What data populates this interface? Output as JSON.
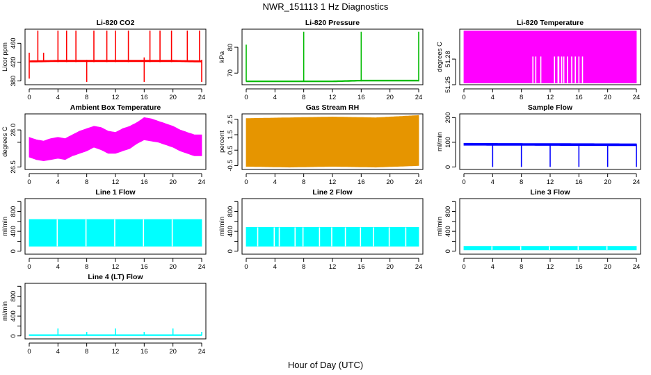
{
  "page": {
    "title": "NWR_151113 1 Hz Diagnostics",
    "xlabel": "Hour of Day (UTC)"
  },
  "chart_data": [
    {
      "id": "co2",
      "type": "line",
      "title": "Li-820 CO2",
      "ylabel": "Licor ppm",
      "color": "#ff0000",
      "xlim": [
        0,
        24
      ],
      "xticks": [
        0,
        4,
        8,
        12,
        16,
        20,
        24
      ],
      "ylim": [
        372,
        490
      ],
      "yticks": [
        380,
        420,
        460
      ],
      "band": {
        "x": [
          0,
          4,
          8,
          12,
          16,
          20,
          24
        ],
        "lo": [
          420,
          421,
          421,
          421,
          421,
          421,
          420
        ],
        "hi": [
          423,
          424,
          424,
          424,
          424,
          424,
          423
        ]
      },
      "spikes": [
        {
          "x": 0,
          "lo": 385,
          "hi": 440
        },
        {
          "x": 1.2,
          "lo": 420,
          "hi": 487
        },
        {
          "x": 2.0,
          "lo": 420,
          "hi": 440
        },
        {
          "x": 4.0,
          "lo": 420,
          "hi": 487
        },
        {
          "x": 5.2,
          "lo": 420,
          "hi": 487
        },
        {
          "x": 6.5,
          "lo": 420,
          "hi": 487
        },
        {
          "x": 8.0,
          "lo": 378,
          "hi": 425
        },
        {
          "x": 9.0,
          "lo": 420,
          "hi": 487
        },
        {
          "x": 10.8,
          "lo": 420,
          "hi": 487
        },
        {
          "x": 12.0,
          "lo": 420,
          "hi": 487
        },
        {
          "x": 13.8,
          "lo": 420,
          "hi": 487
        },
        {
          "x": 16.0,
          "lo": 378,
          "hi": 430
        },
        {
          "x": 16.8,
          "lo": 420,
          "hi": 487
        },
        {
          "x": 18.2,
          "lo": 420,
          "hi": 487
        },
        {
          "x": 19.8,
          "lo": 420,
          "hi": 487
        },
        {
          "x": 22.0,
          "lo": 420,
          "hi": 487
        },
        {
          "x": 23.7,
          "lo": 420,
          "hi": 487
        },
        {
          "x": 24.0,
          "lo": 378,
          "hi": 425
        }
      ]
    },
    {
      "id": "press",
      "type": "line",
      "title": "Li-820 Pressure",
      "ylabel": "kPa",
      "color": "#00bb00",
      "xlim": [
        0,
        24
      ],
      "xticks": [
        0,
        4,
        8,
        12,
        16,
        20,
        24
      ],
      "ylim": [
        65.5,
        87
      ],
      "yticks": [
        70,
        80
      ],
      "band": {
        "x": [
          0,
          4,
          8,
          12,
          16,
          20,
          24
        ],
        "lo": [
          66.6,
          66.6,
          66.6,
          66.6,
          66.9,
          66.9,
          66.9
        ],
        "hi": [
          67.0,
          67.0,
          67.0,
          67.0,
          67.3,
          67.3,
          67.3
        ]
      },
      "spikes": [
        {
          "x": 0,
          "lo": 66.8,
          "hi": 81
        },
        {
          "x": 8.0,
          "lo": 66.8,
          "hi": 86
        },
        {
          "x": 16.0,
          "lo": 66.8,
          "hi": 86
        },
        {
          "x": 24.0,
          "lo": 66.8,
          "hi": 86
        }
      ]
    },
    {
      "id": "ltemp",
      "type": "line",
      "title": "Li-820 Temperature",
      "ylabel": "degrees C",
      "color": "#ff00ff",
      "xlim": [
        0,
        24
      ],
      "xticks": [
        0,
        4,
        8,
        12,
        16,
        20,
        24
      ],
      "ylim": [
        51.25,
        51.315
      ],
      "yticks": [
        51.25,
        51.28
      ],
      "ytickLabels": [
        "51.25",
        "51.28"
      ],
      "band": {
        "x": [
          0,
          24
        ],
        "lo": [
          51.252,
          51.252
        ],
        "hi": [
          51.313,
          51.313
        ]
      },
      "gaps": [
        9.6,
        10.0,
        10.7,
        12.6,
        13.1,
        13.2,
        13.6,
        13.9,
        14.4,
        15.0,
        15.5,
        16.0,
        16.5
      ],
      "gapTop": 51.283
    },
    {
      "id": "btemp",
      "type": "line",
      "title": "Ambient Box Temperature",
      "ylabel": "degrees C",
      "color": "#ff00ff",
      "xlim": [
        0,
        24
      ],
      "xticks": [
        0,
        4,
        8,
        12,
        16,
        20,
        24
      ],
      "ylim": [
        26.4,
        28.65
      ],
      "yticks": [
        26.5,
        27.5,
        28.0
      ],
      "ytickLabels": [
        "26.5",
        "",
        "28.0"
      ],
      "band": {
        "x": [
          0,
          1,
          2,
          3,
          4,
          5,
          6,
          7,
          8,
          9,
          10,
          11,
          12,
          13,
          14,
          15,
          16,
          17,
          18,
          19,
          20,
          21,
          22,
          23,
          24
        ],
        "lo": [
          26.9,
          26.8,
          26.75,
          26.8,
          26.85,
          26.8,
          26.95,
          27.05,
          27.15,
          27.3,
          27.2,
          27.05,
          27.05,
          27.15,
          27.25,
          27.45,
          27.6,
          27.55,
          27.5,
          27.4,
          27.3,
          27.15,
          27.05,
          26.95,
          26.95
        ],
        "hi": [
          27.7,
          27.6,
          27.55,
          27.65,
          27.7,
          27.65,
          27.8,
          27.95,
          28.05,
          28.15,
          28.1,
          27.95,
          27.9,
          28.05,
          28.15,
          28.3,
          28.5,
          28.45,
          28.35,
          28.25,
          28.15,
          28.0,
          27.9,
          27.8,
          27.8
        ]
      }
    },
    {
      "id": "rh",
      "type": "line",
      "title": "Gas Stream RH",
      "ylabel": "percent",
      "color": "#e69500",
      "xlim": [
        0,
        24
      ],
      "xticks": [
        0,
        4,
        8,
        12,
        16,
        20,
        24
      ],
      "ylim": [
        -0.75,
        2.85
      ],
      "yticks": [
        -0.5,
        0.5,
        1.5,
        2.5
      ],
      "ytickLabels": [
        "-0.5",
        "0.5",
        "1.5",
        "2.5"
      ],
      "band": {
        "x": [
          0,
          6,
          12,
          18,
          24
        ],
        "lo": [
          -0.55,
          -0.6,
          -0.55,
          -0.6,
          -0.5
        ],
        "hi": [
          2.55,
          2.6,
          2.65,
          2.6,
          2.75
        ]
      }
    },
    {
      "id": "sflow",
      "type": "line",
      "title": "Sample Flow",
      "ylabel": "ml/min",
      "color": "#0000ff",
      "xlim": [
        0,
        24
      ],
      "xticks": [
        0,
        4,
        8,
        12,
        16,
        20,
        24
      ],
      "ylim": [
        -10,
        215
      ],
      "yticks": [
        0,
        100,
        200
      ],
      "band": {
        "x": [
          0,
          24
        ],
        "lo": [
          88,
          86
        ],
        "hi": [
          96,
          94
        ]
      },
      "spikes": [
        {
          "x": 4.0,
          "lo": 0,
          "hi": 92
        },
        {
          "x": 8.0,
          "lo": 0,
          "hi": 92
        },
        {
          "x": 12.0,
          "lo": 0,
          "hi": 92
        },
        {
          "x": 16.0,
          "lo": 0,
          "hi": 92
        },
        {
          "x": 20.0,
          "lo": 0,
          "hi": 92
        },
        {
          "x": 24.0,
          "lo": 0,
          "hi": 92
        }
      ]
    },
    {
      "id": "l1",
      "type": "line",
      "title": "Line 1 Flow",
      "ylabel": "ml/min",
      "color": "#00ffff",
      "xlim": [
        0,
        24
      ],
      "xticks": [
        0,
        4,
        8,
        12,
        16,
        20,
        24
      ],
      "ylim": [
        -60,
        1060
      ],
      "yticks": [
        0,
        200,
        400,
        600,
        800,
        1000
      ],
      "ytickLabels": [
        "0",
        "",
        "400",
        "",
        "800",
        ""
      ],
      "band": {
        "x": [
          0,
          24
        ],
        "lo": [
          100,
          100
        ],
        "hi": [
          640,
          640
        ]
      },
      "gaps": [
        3.9,
        7.9,
        11.9,
        15.9,
        19.9
      ],
      "gapTop": 640
    },
    {
      "id": "l2",
      "type": "line",
      "title": "Line 2 Flow",
      "ylabel": "ml/min",
      "color": "#00ffff",
      "xlim": [
        0,
        24
      ],
      "xticks": [
        0,
        4,
        8,
        12,
        16,
        20,
        24
      ],
      "ylim": [
        -60,
        1060
      ],
      "yticks": [
        0,
        200,
        400,
        600,
        800,
        1000
      ],
      "ytickLabels": [
        "0",
        "",
        "400",
        "",
        "800",
        ""
      ],
      "band": {
        "x": [
          0,
          24
        ],
        "lo": [
          100,
          100
        ],
        "hi": [
          480,
          480
        ]
      },
      "gaps": [
        1.6,
        3.9,
        4.6,
        6.8,
        7.9,
        10.2,
        11.9,
        13.8,
        15.9,
        17.7,
        19.9,
        22.2
      ],
      "gapTop": 480
    },
    {
      "id": "l3",
      "type": "line",
      "title": "Line 3 Flow",
      "ylabel": "ml/min",
      "color": "#00ffff",
      "xlim": [
        0,
        24
      ],
      "xticks": [
        0,
        4,
        8,
        12,
        16,
        20,
        24
      ],
      "ylim": [
        -60,
        1060
      ],
      "yticks": [
        0,
        200,
        400,
        600,
        800,
        1000
      ],
      "ytickLabels": [
        "0",
        "",
        "400",
        "",
        "800",
        ""
      ],
      "band": {
        "x": [
          0,
          24
        ],
        "lo": [
          25,
          25
        ],
        "hi": [
          100,
          100
        ]
      },
      "gaps": [
        3.9,
        7.9,
        11.9,
        15.9,
        19.9
      ],
      "gapTop": 100
    },
    {
      "id": "l4",
      "type": "line",
      "title": "Line 4 (LT) Flow",
      "ylabel": "ml/min",
      "color": "#00ffff",
      "xlim": [
        0,
        24
      ],
      "xticks": [
        0,
        4,
        8,
        12,
        16,
        20,
        24
      ],
      "ylim": [
        -60,
        1060
      ],
      "yticks": [
        0,
        200,
        400,
        600,
        800,
        1000
      ],
      "ytickLabels": [
        "0",
        "",
        "400",
        "",
        "800",
        ""
      ],
      "band": {
        "x": [
          0,
          24
        ],
        "lo": [
          5,
          5
        ],
        "hi": [
          25,
          25
        ]
      },
      "spikes": [
        {
          "x": 4.0,
          "lo": 10,
          "hi": 150
        },
        {
          "x": 8.0,
          "lo": 10,
          "hi": 80
        },
        {
          "x": 12.0,
          "lo": 10,
          "hi": 150
        },
        {
          "x": 16.0,
          "lo": 10,
          "hi": 80
        },
        {
          "x": 20.0,
          "lo": 10,
          "hi": 150
        },
        {
          "x": 24.0,
          "lo": 10,
          "hi": 80
        }
      ]
    }
  ]
}
